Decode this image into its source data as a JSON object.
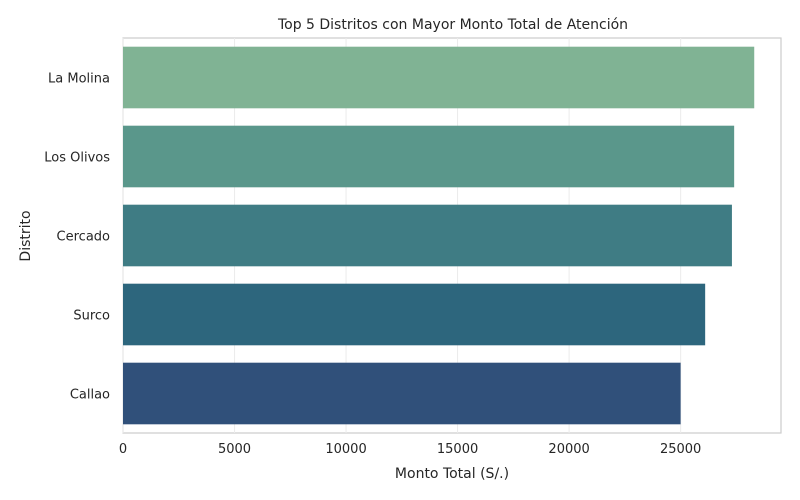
{
  "chart_data": {
    "type": "bar",
    "orientation": "horizontal",
    "title": "Top 5 Distritos con Mayor Monto Total de Atención",
    "xlabel": "Monto Total (S/.)",
    "ylabel": "Distrito",
    "categories": [
      "La Molina",
      "Los Olivos",
      "Cercado",
      "Surco",
      "Callao"
    ],
    "values": [
      28300,
      27400,
      27300,
      26100,
      25000
    ],
    "xlim": [
      0,
      29500
    ],
    "xticks": [
      0,
      5000,
      10000,
      15000,
      20000,
      25000
    ],
    "grid": true,
    "colors": [
      "#80b394",
      "#5a978b",
      "#3f7c84",
      "#2d667d",
      "#30507a"
    ]
  }
}
